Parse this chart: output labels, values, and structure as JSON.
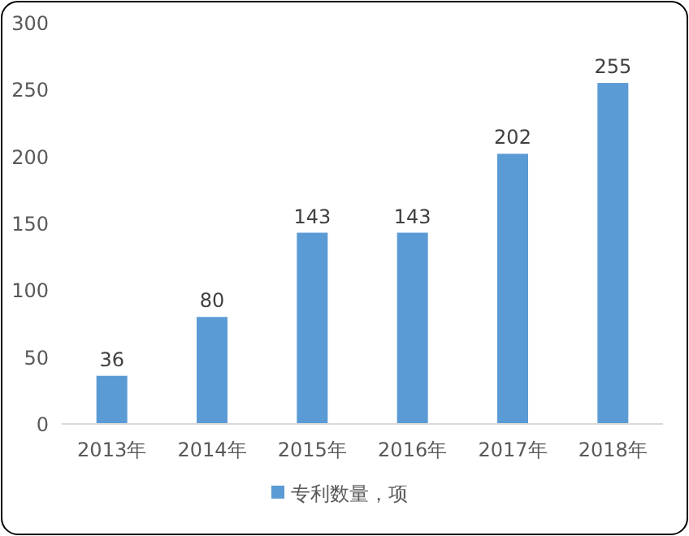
{
  "chart_data": {
    "type": "bar",
    "categories": [
      "2013年",
      "2014年",
      "2015年",
      "2016年",
      "2017年",
      "2018年"
    ],
    "series": [
      {
        "name": "专利数量，项",
        "color": "#5b9bd5",
        "values": [
          36,
          80,
          143,
          143,
          202,
          255
        ]
      }
    ],
    "ylim": [
      0,
      300
    ],
    "yticks": [
      0,
      50,
      100,
      150,
      200,
      250,
      300
    ],
    "data_labels": true,
    "legend": "bottom"
  }
}
